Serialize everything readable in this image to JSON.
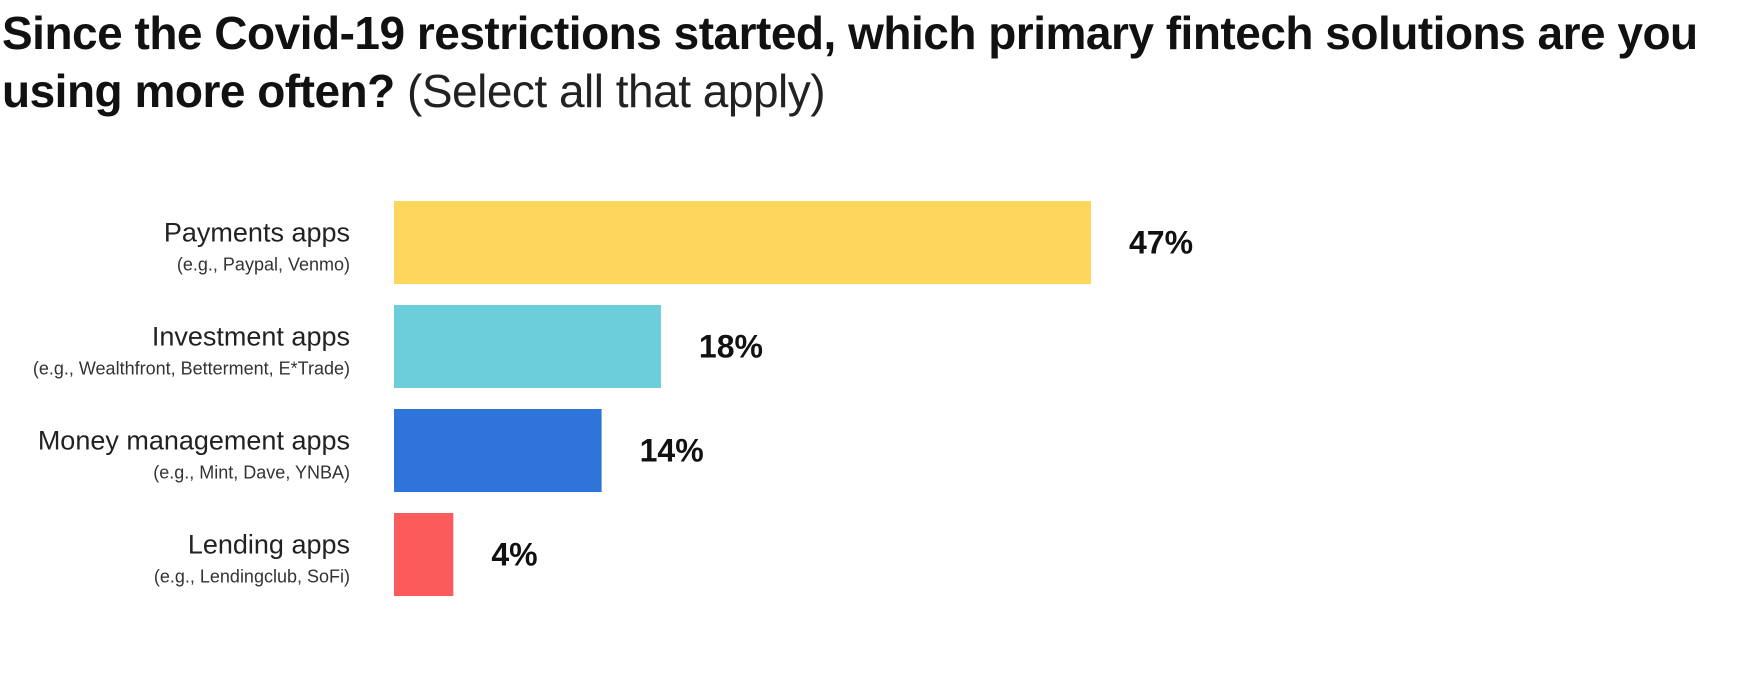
{
  "chart_data": {
    "type": "bar",
    "orientation": "horizontal",
    "title": "Since the Covid-19 restrictions started, which primary fintech solutions are you using more often?",
    "subtitle": "(Select all that apply)",
    "categories": [
      "Payments apps",
      "Investment apps",
      "Money management apps",
      "Lending apps"
    ],
    "category_notes": [
      "(e.g., Paypal, Venmo)",
      "(e.g., Wealthfront, Betterment, E*Trade)",
      "(e.g., Mint, Dave, YNBA)",
      "(e.g., Lendingclub, SoFi)"
    ],
    "values": [
      47,
      18,
      14,
      4
    ],
    "value_labels": [
      "47%",
      "18%",
      "14%",
      "4%"
    ],
    "unit": "%",
    "colors": [
      "#FDD65B",
      "#6CCDDB",
      "#2F74DA",
      "#FB5B5B"
    ],
    "xlim": [
      0,
      47
    ],
    "grid": false,
    "legend": "none"
  }
}
